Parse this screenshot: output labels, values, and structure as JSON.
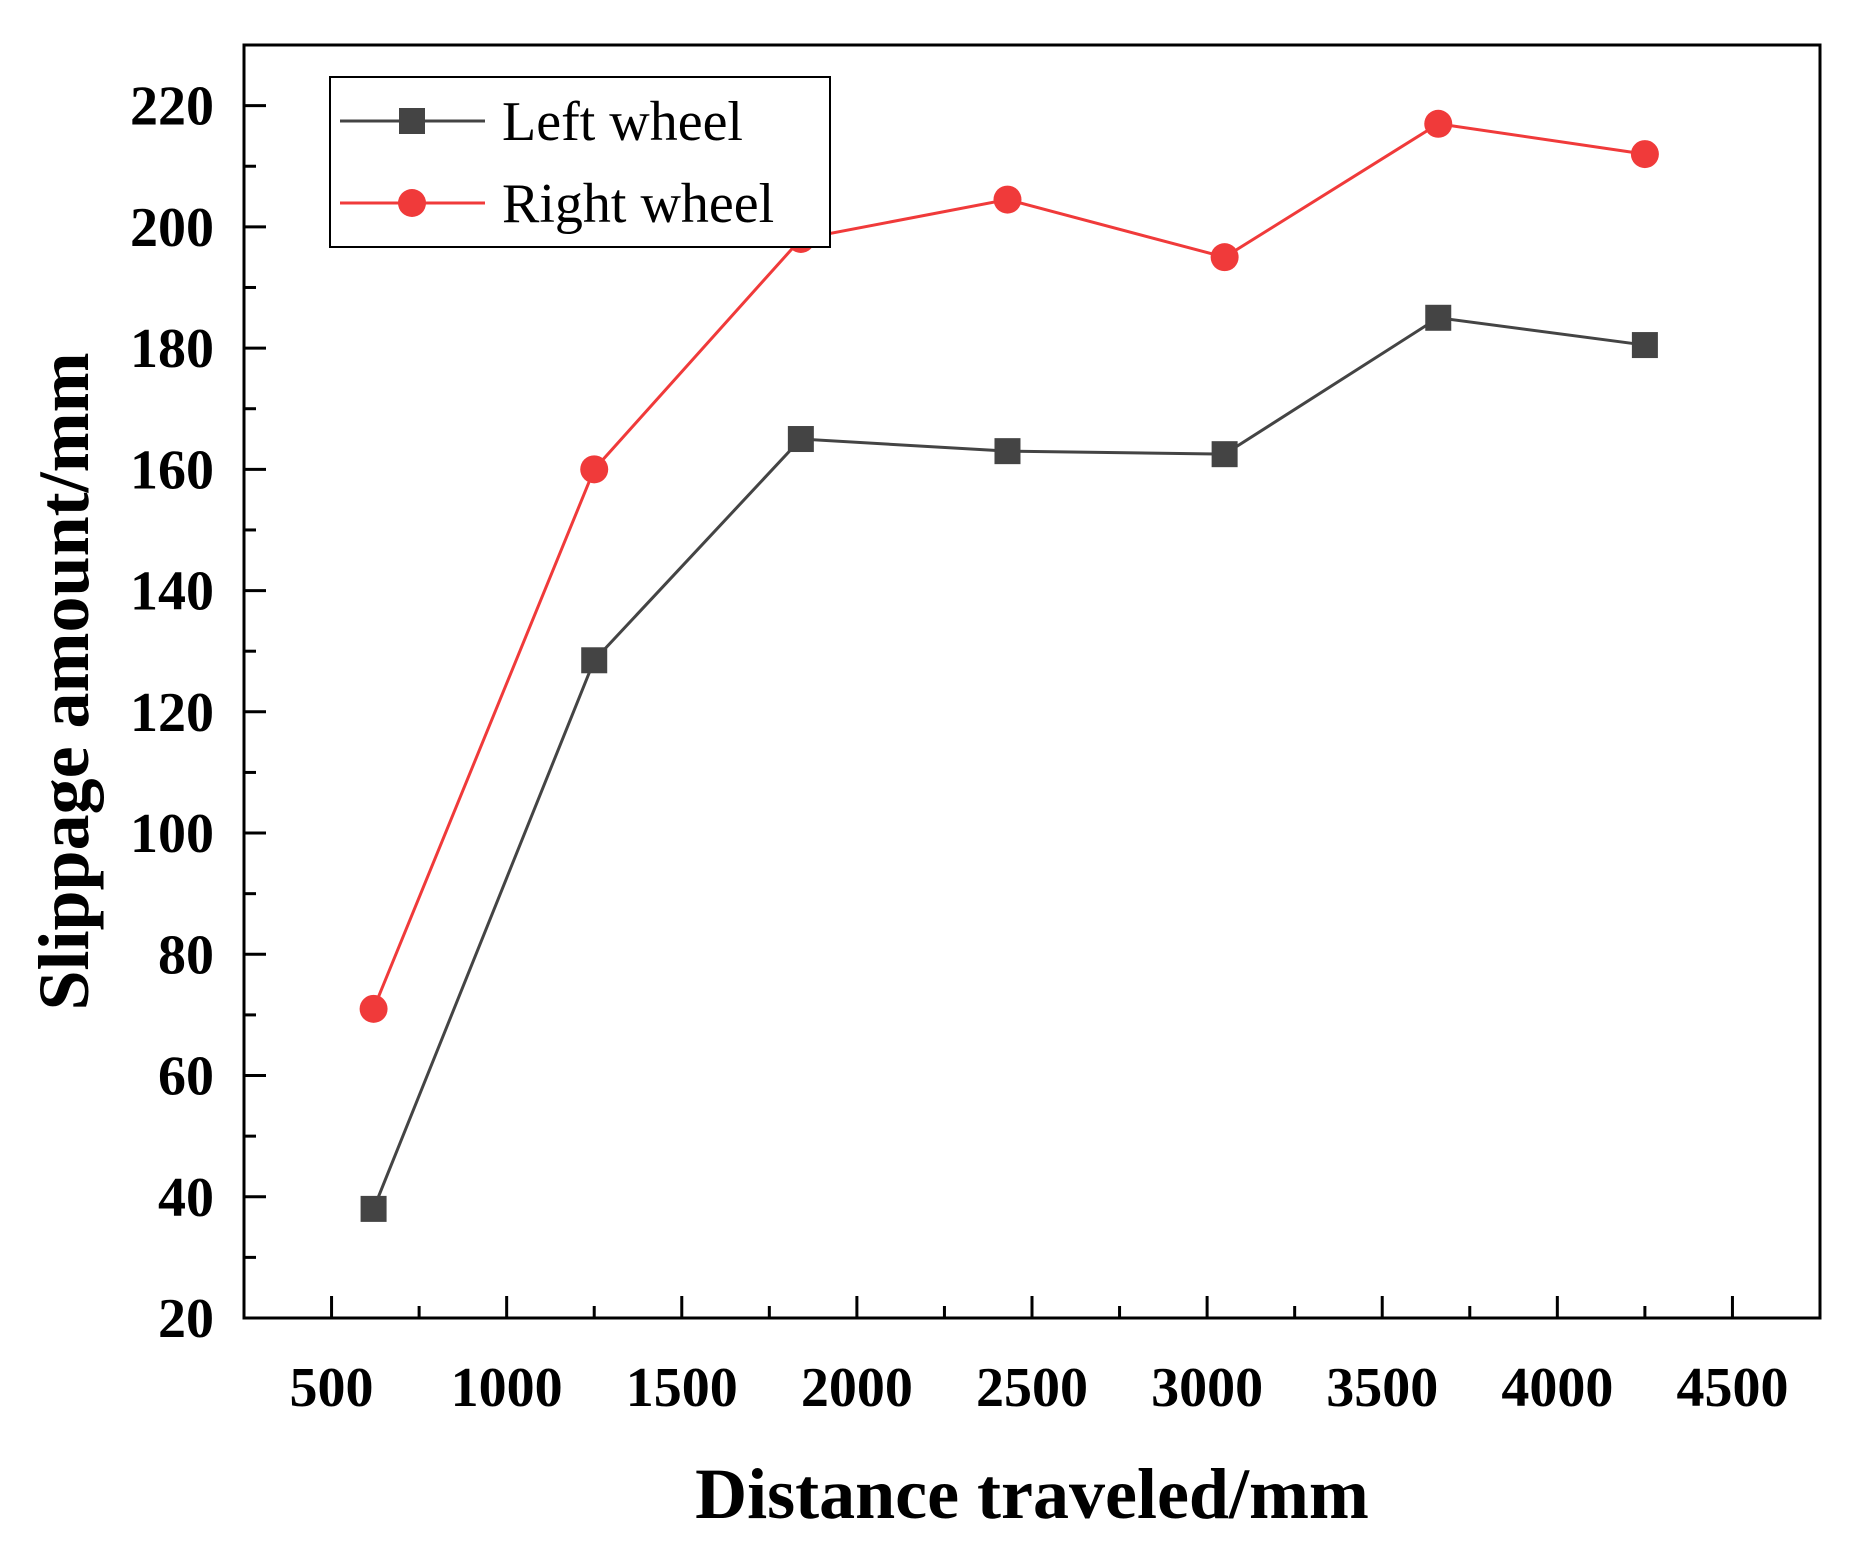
{
  "chart_data": {
    "type": "line",
    "title": "",
    "xlabel": "Distance traveled/mm",
    "ylabel": "Slippage amount/mm",
    "xlim": [
      250,
      4750
    ],
    "ylim": [
      20,
      230
    ],
    "xticks": [
      500,
      1000,
      1500,
      2000,
      2500,
      3000,
      3500,
      4000,
      4500
    ],
    "yticks": [
      20,
      40,
      60,
      80,
      100,
      120,
      140,
      160,
      180,
      200,
      220
    ],
    "xtick_labels": [
      "500",
      "1000",
      "1500",
      "2000",
      "2500",
      "3000",
      "3500",
      "4000",
      "4500"
    ],
    "ytick_labels": [
      "20",
      "40",
      "60",
      "80",
      "100",
      "120",
      "140",
      "160",
      "180",
      "200",
      "220"
    ],
    "grid": false,
    "legend_position": "top-left",
    "x": [
      620,
      1250,
      1840,
      2430,
      3050,
      3660,
      4250
    ],
    "series": [
      {
        "name": "Left wheel",
        "marker": "square",
        "color": "#444444",
        "values": [
          38,
          128.5,
          165,
          163,
          162.5,
          185,
          180.5
        ]
      },
      {
        "name": "Right wheel",
        "marker": "circle",
        "color": "#f03a3a",
        "values": [
          71,
          160,
          198,
          204.5,
          195,
          217,
          212
        ]
      }
    ]
  }
}
